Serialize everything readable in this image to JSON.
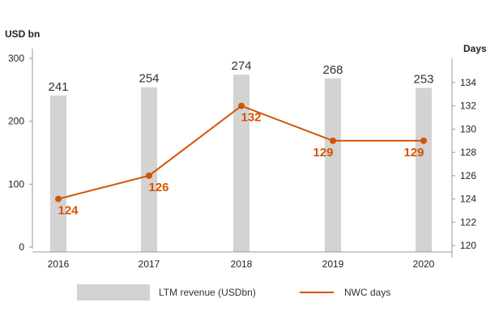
{
  "chart_data": {
    "type": "bar",
    "categories": [
      "2016",
      "2017",
      "2018",
      "2019",
      "2020"
    ],
    "left_axis_title": "USD bn",
    "right_axis_title": "Days",
    "left_ylim": [
      0,
      300
    ],
    "left_ticks": [
      0,
      100,
      200,
      300
    ],
    "right_ylim": [
      120,
      136
    ],
    "right_ticks": [
      120,
      122,
      124,
      126,
      128,
      130,
      132,
      134
    ],
    "series": [
      {
        "name": "LTM revenue (USDbn)",
        "type": "bar",
        "axis": "left",
        "color": "#d3d3d3",
        "values": [
          241,
          254,
          274,
          268,
          253
        ]
      },
      {
        "name": "NWC days",
        "type": "line",
        "axis": "right",
        "color": "#d35400",
        "values": [
          124,
          126,
          132,
          129,
          129
        ]
      }
    ],
    "legend_placement": "bottom",
    "grid": false
  }
}
